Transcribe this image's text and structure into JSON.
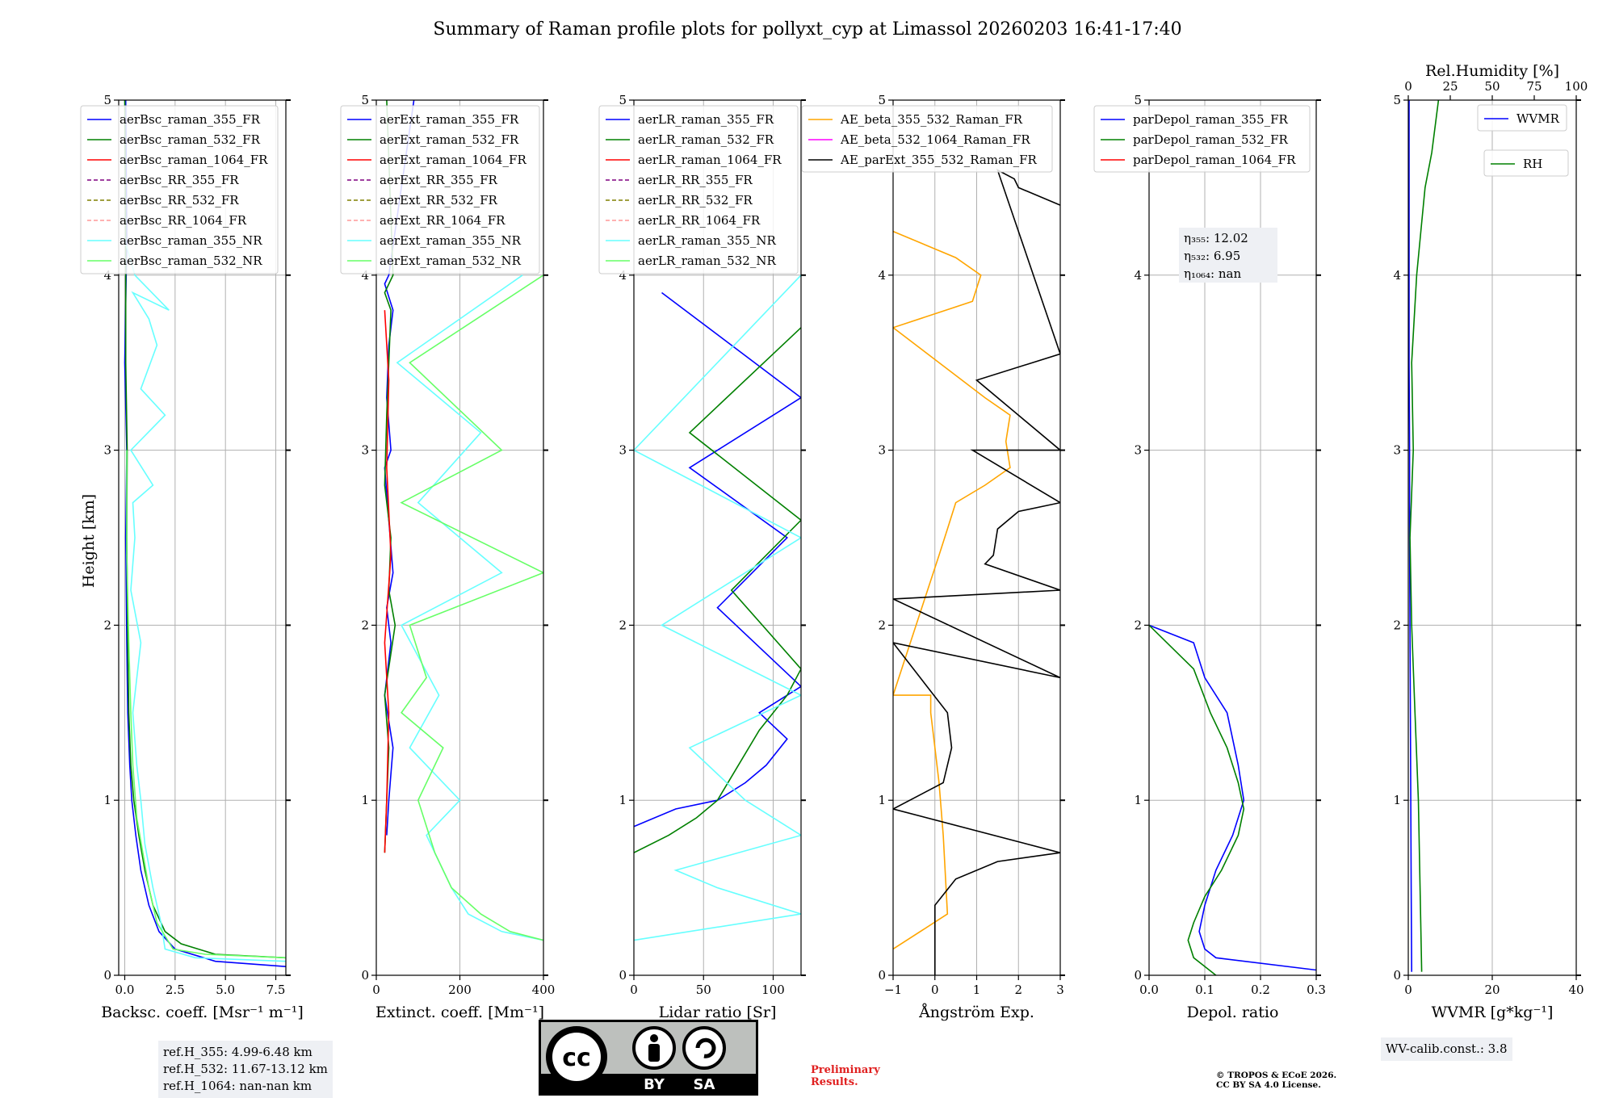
{
  "title": "Summary of Raman profile plots for pollyxt_cyp at Limassol 20260203 16:41-17:40",
  "ylabel": "Height [km]",
  "colors": {
    "blue": "#0000ff",
    "green": "#008000",
    "red": "#ff0000",
    "purple": "#800080",
    "olive": "#808000",
    "salmon": "#ff9999",
    "cyan": "#66ffff",
    "lightgreen": "#66ff66",
    "orange": "#ffa500",
    "magenta": "#ff00ff",
    "black": "#000000"
  },
  "chart_data": [
    {
      "type": "line",
      "id": "backscatter",
      "xlabel": "Backsc. coeff. [Msr⁻¹ m⁻¹]",
      "xlim": [
        -0.3,
        8.0
      ],
      "ylim": [
        0,
        5
      ],
      "xticks": [
        "0.0",
        "2.5",
        "5.0",
        "7.5"
      ],
      "xtick_values": [
        0,
        2.5,
        5,
        7.5
      ],
      "yticks": [
        "0",
        "1",
        "2",
        "3",
        "4",
        "5"
      ],
      "legend": [
        "aerBsc_raman_355_FR",
        "aerBsc_raman_532_FR",
        "aerBsc_raman_1064_FR",
        "aerBsc_RR_355_FR",
        "aerBsc_RR_532_FR",
        "aerBsc_RR_1064_FR",
        "aerBsc_raman_355_NR",
        "aerBsc_raman_532_NR"
      ],
      "series": [
        {
          "name": "aerBsc_raman_355_FR",
          "x": [
            8.0,
            4.5,
            2.5,
            1.7,
            1.2,
            0.8,
            0.55,
            0.35,
            0.25,
            0.15,
            0.1,
            0.05,
            0.1,
            0.0,
            0.1,
            0.05
          ],
          "y": [
            0.05,
            0.08,
            0.15,
            0.25,
            0.4,
            0.6,
            0.8,
            1.0,
            1.2,
            1.5,
            1.9,
            2.5,
            3.0,
            3.5,
            4.2,
            5.0
          ]
        },
        {
          "name": "aerBsc_raman_532_FR",
          "x": [
            8.0,
            4.5,
            2.8,
            2.0,
            1.4,
            1.0,
            0.7,
            0.45,
            0.3,
            0.2,
            0.15,
            0.1,
            0.12,
            0.05,
            0.05,
            0.0
          ],
          "y": [
            0.1,
            0.12,
            0.18,
            0.25,
            0.4,
            0.6,
            0.8,
            1.0,
            1.2,
            1.5,
            1.9,
            2.5,
            3.0,
            3.5,
            4.2,
            5.0
          ]
        },
        {
          "name": "aerBsc_raman_355_NR",
          "x": [
            8.0,
            3.5,
            2.0,
            1.8,
            1.4,
            1.0,
            0.8,
            0.6,
            0.4,
            0.8,
            0.3,
            0.5,
            0.4,
            1.4,
            0.3,
            2.0,
            0.8,
            1.6,
            1.2,
            0.4,
            2.2,
            0.5,
            0.0
          ],
          "y": [
            0.08,
            0.1,
            0.15,
            0.3,
            0.5,
            0.75,
            1.0,
            1.2,
            1.5,
            1.9,
            2.2,
            2.5,
            2.7,
            2.8,
            3.0,
            3.2,
            3.35,
            3.6,
            3.75,
            3.9,
            3.8,
            4.0,
            4.2
          ]
        },
        {
          "name": "aerBsc_raman_532_NR",
          "x": [
            8.0,
            4.0,
            2.4,
            1.6,
            1.2,
            0.9,
            0.6,
            0.4,
            0.3,
            0.2,
            0.1,
            0.1
          ],
          "y": [
            0.1,
            0.12,
            0.15,
            0.3,
            0.5,
            0.7,
            0.9,
            1.2,
            1.5,
            1.9,
            2.4,
            3.0
          ]
        }
      ]
    },
    {
      "type": "line",
      "id": "extinction",
      "xlabel": "Extinct. coeff. [Mm⁻¹]",
      "xlim": [
        0,
        400
      ],
      "ylim": [
        0,
        5
      ],
      "xticks": [
        "0",
        "200",
        "400"
      ],
      "xtick_values": [
        0,
        200,
        400
      ],
      "yticks": [
        "0",
        "1",
        "2",
        "3",
        "4",
        "5"
      ],
      "legend": [
        "aerExt_raman_355_FR",
        "aerExt_raman_532_FR",
        "aerExt_raman_1064_FR",
        "aerExt_RR_355_FR",
        "aerExt_RR_532_FR",
        "aerExt_RR_1064_FR",
        "aerExt_raman_355_NR",
        "aerExt_raman_532_NR"
      ],
      "series": [
        {
          "name": "aerExt_raman_355_FR",
          "x": [
            25,
            30,
            40,
            20,
            35,
            25,
            40,
            30,
            20,
            35,
            25,
            30,
            40,
            20,
            30,
            90
          ],
          "y": [
            0.8,
            1.0,
            1.3,
            1.6,
            1.9,
            2.1,
            2.3,
            2.6,
            2.9,
            3.0,
            3.3,
            3.6,
            3.8,
            3.95,
            4.0,
            5.0
          ]
        },
        {
          "name": "aerExt_raman_532_FR",
          "x": [
            20,
            25,
            30,
            20,
            45,
            30,
            35,
            20,
            25,
            30,
            35,
            20,
            40,
            25
          ],
          "y": [
            0.7,
            1.0,
            1.3,
            1.6,
            2.0,
            2.2,
            2.5,
            2.8,
            3.2,
            3.5,
            3.8,
            3.9,
            4.0,
            5.0
          ]
        },
        {
          "name": "aerExt_raman_1064_FR",
          "x": [
            20,
            25,
            30,
            20,
            35,
            25,
            30,
            20
          ],
          "y": [
            0.7,
            1.0,
            1.5,
            1.9,
            2.4,
            2.9,
            3.4,
            3.8
          ]
        },
        {
          "name": "aerExt_raman_355_NR",
          "x": [
            400,
            300,
            220,
            180,
            120,
            200,
            80,
            150,
            60,
            300,
            100,
            250,
            50,
            350
          ],
          "y": [
            0.2,
            0.25,
            0.35,
            0.5,
            0.8,
            1.0,
            1.3,
            1.6,
            2.0,
            2.3,
            2.7,
            3.1,
            3.5,
            4.0
          ]
        },
        {
          "name": "aerExt_raman_532_NR",
          "x": [
            400,
            320,
            250,
            180,
            140,
            100,
            160,
            60,
            120,
            80,
            400,
            60,
            300,
            80,
            400
          ],
          "y": [
            0.2,
            0.25,
            0.35,
            0.5,
            0.7,
            1.0,
            1.3,
            1.5,
            1.7,
            2.0,
            2.3,
            2.7,
            3.0,
            3.5,
            4.0
          ]
        }
      ]
    },
    {
      "type": "line",
      "id": "lidar_ratio",
      "xlabel": "Lidar ratio [Sr]",
      "xlim": [
        0,
        120
      ],
      "ylim": [
        0,
        5
      ],
      "xticks": [
        "0",
        "50",
        "100"
      ],
      "xtick_values": [
        0,
        50,
        100
      ],
      "yticks": [
        "0",
        "1",
        "2",
        "3",
        "4",
        "5"
      ],
      "legend": [
        "aerLR_raman_355_FR",
        "aerLR_raman_532_FR",
        "aerLR_raman_1064_FR",
        "aerLR_RR_355_FR",
        "aerLR_RR_532_FR",
        "aerLR_RR_1064_FR",
        "aerLR_raman_355_NR",
        "aerLR_raman_532_NR"
      ],
      "series": [
        {
          "name": "aerLR_raman_355_FR",
          "x": [
            0,
            30,
            60,
            80,
            95,
            110,
            90,
            120,
            60,
            110,
            40,
            120,
            20
          ],
          "y": [
            0.85,
            0.95,
            1.0,
            1.1,
            1.2,
            1.35,
            1.5,
            1.65,
            2.1,
            2.5,
            2.9,
            3.3,
            3.9
          ]
        },
        {
          "name": "aerLR_raman_532_FR",
          "x": [
            0,
            25,
            45,
            60,
            75,
            90,
            110,
            120,
            70,
            120,
            40,
            120
          ],
          "y": [
            0.7,
            0.8,
            0.9,
            1.0,
            1.2,
            1.4,
            1.6,
            1.75,
            2.2,
            2.6,
            3.1,
            3.7
          ]
        },
        {
          "name": "aerLR_raman_355_NR",
          "x": [
            0,
            120,
            60,
            30,
            120,
            80,
            40,
            120,
            20,
            120,
            0,
            120
          ],
          "y": [
            0.2,
            0.35,
            0.5,
            0.6,
            0.8,
            1.0,
            1.3,
            1.6,
            2.0,
            2.5,
            3.0,
            4.0
          ]
        }
      ]
    },
    {
      "type": "line",
      "id": "angstrom",
      "xlabel": "Ångström Exp.",
      "xlim": [
        -1,
        3
      ],
      "ylim": [
        0,
        5
      ],
      "xticks": [
        "−1",
        "0",
        "1",
        "2",
        "3"
      ],
      "xtick_values": [
        -1,
        0,
        1,
        2,
        3
      ],
      "yticks": [
        "0",
        "1",
        "2",
        "3",
        "4",
        "5"
      ],
      "legend": [
        "AE_beta_355_532_Raman_FR",
        "AE_beta_532_1064_Raman_FR",
        "AE_parExt_355_532_Raman_FR"
      ],
      "series": [
        {
          "name": "AE_beta_355_532_Raman_FR",
          "x": [
            -1,
            0.3,
            0.2,
            0.1,
            0.0,
            -0.1,
            -0.1,
            -1,
            0.1,
            0.3,
            0.5,
            1.2,
            1.8,
            1.7,
            1.8,
            1.2,
            -1,
            0.9,
            1.1,
            0.5,
            -1
          ],
          "y": [
            0.15,
            0.35,
            0.8,
            1.1,
            1.3,
            1.5,
            1.6,
            1.6,
            2.4,
            2.55,
            2.7,
            2.8,
            2.9,
            3.05,
            3.2,
            3.3,
            3.7,
            3.85,
            4.0,
            4.1,
            4.25
          ]
        },
        {
          "name": "AE_parExt_355_532_Raman_FR",
          "x": [
            0,
            0.0,
            0.5,
            1.5,
            3,
            -1,
            0.2,
            0.3,
            0.4,
            0.3,
            -1,
            3,
            -1,
            3,
            1.2,
            1.4,
            1.5,
            2.0,
            3,
            0.9,
            3,
            1.0,
            3,
            1.5,
            1.9,
            2.0,
            3
          ],
          "y": [
            0,
            0.4,
            0.55,
            0.65,
            0.7,
            0.95,
            1.1,
            1.2,
            1.3,
            1.5,
            1.9,
            1.7,
            2.15,
            2.2,
            2.35,
            2.4,
            2.55,
            2.65,
            2.7,
            3.0,
            3.0,
            3.4,
            3.55,
            4.6,
            4.55,
            4.5,
            4.4
          ]
        }
      ]
    },
    {
      "type": "line",
      "id": "depol",
      "xlabel": "Depol. ratio",
      "xlim": [
        0,
        0.3
      ],
      "ylim": [
        0,
        5
      ],
      "xticks": [
        "0.0",
        "0.1",
        "0.2",
        "0.3"
      ],
      "xtick_values": [
        0,
        0.1,
        0.2,
        0.3
      ],
      "yticks": [
        "0",
        "1",
        "2",
        "3",
        "4",
        "5"
      ],
      "legend": [
        "parDepol_raman_355_FR",
        "parDepol_raman_532_FR",
        "parDepol_raman_1064_FR"
      ],
      "annotation": [
        "η₃₅₅: 12.02",
        "η₅₃₂: 6.95",
        "η₁₀₆₄: nan"
      ],
      "series": [
        {
          "name": "parDepol_raman_355_FR",
          "x": [
            0.3,
            0.12,
            0.1,
            0.09,
            0.1,
            0.12,
            0.15,
            0.16,
            0.17,
            0.16,
            0.14,
            0.1,
            0.08,
            0.0
          ],
          "y": [
            0.03,
            0.1,
            0.15,
            0.25,
            0.4,
            0.6,
            0.8,
            0.9,
            1.0,
            1.2,
            1.5,
            1.7,
            1.9,
            2.0
          ]
        },
        {
          "name": "parDepol_raman_532_FR",
          "x": [
            0.12,
            0.08,
            0.07,
            0.08,
            0.1,
            0.13,
            0.16,
            0.17,
            0.16,
            0.14,
            0.11,
            0.08,
            0.0
          ],
          "y": [
            0.0,
            0.1,
            0.2,
            0.3,
            0.45,
            0.6,
            0.8,
            0.95,
            1.1,
            1.3,
            1.5,
            1.75,
            2.0
          ]
        }
      ]
    },
    {
      "type": "line",
      "id": "wvmr",
      "xlabel": "WVMR [g*kg⁻¹]",
      "xlim": [
        0,
        40
      ],
      "ylim": [
        0,
        5
      ],
      "xticks": [
        "0",
        "20",
        "40"
      ],
      "xtick_values": [
        0,
        20,
        40
      ],
      "yticks": [
        "0",
        "1",
        "2",
        "3",
        "4",
        "5"
      ],
      "top_axis_label": "Rel.Humidity [%]",
      "top_xticks": [
        "0",
        "25",
        "50",
        "75",
        "100"
      ],
      "top_xtick_values": [
        0,
        25,
        50,
        75,
        100
      ],
      "legend": [
        "WVMR",
        "RH"
      ],
      "series": [
        {
          "name": "WVMR",
          "x": [
            0.8,
            0.7,
            0.6,
            0.5,
            0.4,
            0.3,
            0.3,
            0.2,
            0.2,
            0.2
          ],
          "y": [
            0.02,
            0.5,
            1.0,
            1.5,
            2.0,
            2.5,
            3.0,
            3.5,
            4.0,
            5.0
          ]
        },
        {
          "name": "RH",
          "top_x": [
            8,
            7,
            6,
            4,
            2,
            1,
            3,
            2,
            5,
            8,
            10,
            14,
            18
          ],
          "y": [
            0.02,
            0.5,
            1.0,
            1.5,
            2.0,
            2.5,
            3.0,
            3.5,
            4.0,
            4.3,
            4.5,
            4.7,
            5.0
          ]
        }
      ]
    }
  ],
  "ref_heights": [
    "ref.H_355: 4.99-6.48 km",
    "ref.H_532: 11.67-13.12 km",
    "ref.H_1064: nan-nan km"
  ],
  "wv_calib": "WV-calib.const.: 3.8",
  "license_badge": {
    "by": "BY",
    "sa": "SA",
    "cc": "cc"
  },
  "preliminary": [
    "Preliminary",
    "Results."
  ],
  "copyright": [
    "© TROPOS & ECoE 2026.",
    "CC BY SA 4.0 License."
  ]
}
